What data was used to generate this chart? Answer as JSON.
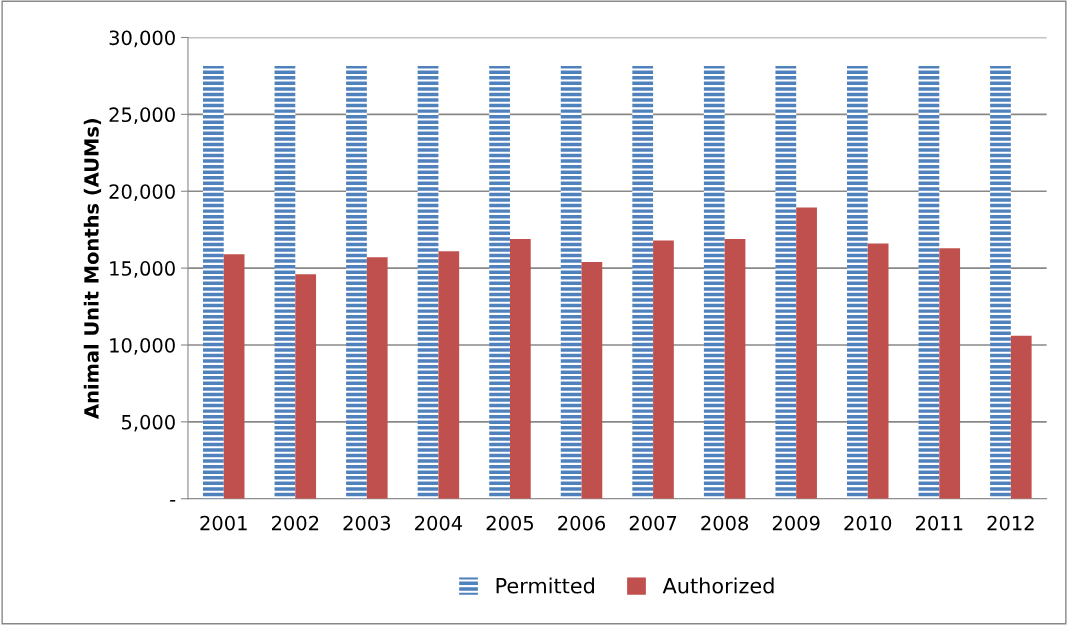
{
  "chart_data": {
    "type": "bar",
    "ylabel": "Animal Unit Months (AUMs)",
    "categories": [
      "2001",
      "2002",
      "2003",
      "2004",
      "2005",
      "2006",
      "2007",
      "2008",
      "2009",
      "2010",
      "2011",
      "2012"
    ],
    "series": [
      {
        "name": "Permitted",
        "color": "#4f81bd",
        "values": [
          28150,
          28150,
          28150,
          28150,
          28150,
          28150,
          28150,
          28150,
          28150,
          28150,
          28150,
          28150
        ]
      },
      {
        "name": "Authorized",
        "color": "#c0504d",
        "values": [
          15900,
          14600,
          15700,
          16100,
          16900,
          15400,
          16800,
          16900,
          18950,
          16600,
          16300,
          10600
        ]
      }
    ],
    "ylim": [
      0,
      30000
    ],
    "yticks": [
      {
        "value": 0,
        "label": "-"
      },
      {
        "value": 5000,
        "label": "5,000"
      },
      {
        "value": 10000,
        "label": "10,000"
      },
      {
        "value": 15000,
        "label": "15,000"
      },
      {
        "value": 20000,
        "label": "20,000"
      },
      {
        "value": 25000,
        "label": "25,000"
      },
      {
        "value": 30000,
        "label": "30,000"
      }
    ],
    "grid": "y",
    "legend": "bottom"
  }
}
